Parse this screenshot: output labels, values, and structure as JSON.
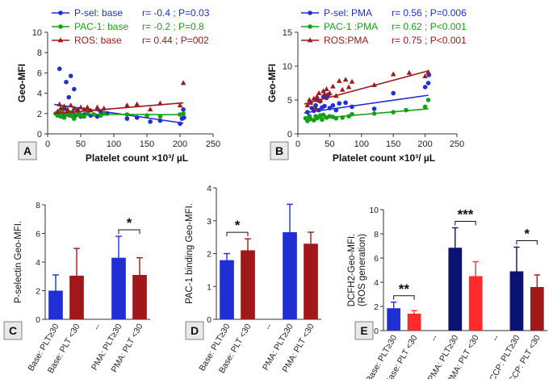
{
  "colors": {
    "blue": "#1f2fd1",
    "green": "#16a016",
    "darkred": "#a01818",
    "navy": "#0a1273",
    "red": "#ff2a2a",
    "axis": "#333333",
    "panel_bg": "#e9e9e9"
  },
  "chart_data": [
    {
      "id": "A",
      "type": "scatter",
      "panel_label": "A",
      "xlabel": "Platelet count  ×10³/ µL",
      "ylabel": "Geo-MFI",
      "xlim": [
        0,
        250
      ],
      "ylim": [
        0,
        10
      ],
      "xticks": [
        "0",
        "50",
        "100",
        "150",
        "200",
        "250"
      ],
      "yticks": [
        "0",
        "2",
        "4",
        "6",
        "8",
        "10"
      ],
      "series": [
        {
          "name": "P-sel: base",
          "stat": "r= -0.4 ; P=0.03",
          "color": "#1f2fd1",
          "marker": "circle",
          "points": [
            [
              15,
              1.9
            ],
            [
              18,
              6.4
            ],
            [
              20,
              2.4
            ],
            [
              22,
              1.9
            ],
            [
              25,
              2.5
            ],
            [
              28,
              5.1
            ],
            [
              30,
              2.2
            ],
            [
              32,
              3.6
            ],
            [
              35,
              5.7
            ],
            [
              38,
              2.1
            ],
            [
              40,
              4.4
            ],
            [
              42,
              1.8
            ],
            [
              45,
              2.3
            ],
            [
              48,
              2.0
            ],
            [
              50,
              1.7
            ],
            [
              55,
              1.9
            ],
            [
              60,
              2.0
            ],
            [
              65,
              1.8
            ],
            [
              75,
              1.7
            ],
            [
              80,
              2.2
            ],
            [
              90,
              2.0
            ],
            [
              120,
              1.5
            ],
            [
              135,
              1.6
            ],
            [
              155,
              1.2
            ],
            [
              170,
              1.3
            ],
            [
              200,
              1.0
            ],
            [
              203,
              1.5
            ],
            [
              205,
              2.4
            ],
            [
              206,
              1.6
            ]
          ],
          "fit": [
            [
              10,
              2.9
            ],
            [
              205,
              1.05
            ]
          ]
        },
        {
          "name": "PAC-1: base",
          "stat": "r= -0.2 ; P=0.8",
          "color": "#16a016",
          "marker": "circle",
          "points": [
            [
              12,
              2.0
            ],
            [
              15,
              1.8
            ],
            [
              18,
              2.1
            ],
            [
              20,
              1.7
            ],
            [
              22,
              2.2
            ],
            [
              25,
              1.6
            ],
            [
              28,
              1.9
            ],
            [
              30,
              2.0
            ],
            [
              33,
              1.8
            ],
            [
              35,
              2.1
            ],
            [
              38,
              1.7
            ],
            [
              40,
              1.5
            ],
            [
              45,
              1.9
            ],
            [
              48,
              2.0
            ],
            [
              50,
              1.8
            ],
            [
              55,
              1.7
            ],
            [
              60,
              2.2
            ],
            [
              70,
              1.9
            ],
            [
              80,
              1.8
            ],
            [
              85,
              2.0
            ],
            [
              120,
              1.9
            ],
            [
              150,
              1.8
            ],
            [
              170,
              1.7
            ],
            [
              200,
              1.9
            ],
            [
              205,
              2.0
            ]
          ],
          "fit": [
            [
              10,
              1.95
            ],
            [
              205,
              1.88
            ]
          ]
        },
        {
          "name": "ROS: base",
          "stat": "r= 0.44 ; P=002",
          "color": "#a01818",
          "marker": "triangle",
          "points": [
            [
              15,
              2.2
            ],
            [
              18,
              2.9
            ],
            [
              20,
              2.5
            ],
            [
              25,
              2.7
            ],
            [
              30,
              2.4
            ],
            [
              35,
              2.8
            ],
            [
              40,
              2.5
            ],
            [
              45,
              2.3
            ],
            [
              50,
              2.6
            ],
            [
              55,
              2.4
            ],
            [
              60,
              2.6
            ],
            [
              65,
              2.3
            ],
            [
              75,
              2.6
            ],
            [
              85,
              2.5
            ],
            [
              120,
              2.8
            ],
            [
              135,
              2.9
            ],
            [
              155,
              2.4
            ],
            [
              170,
              3.0
            ],
            [
              200,
              2.8
            ],
            [
              205,
              5.0
            ]
          ],
          "fit": [
            [
              10,
              2.0
            ],
            [
              205,
              3.05
            ]
          ]
        }
      ]
    },
    {
      "id": "B",
      "type": "scatter",
      "panel_label": "B",
      "xlabel": "Platelet count  ×10³/ µL",
      "ylabel": "Geo-MFI",
      "xlim": [
        0,
        250
      ],
      "ylim": [
        0,
        15
      ],
      "xticks": [
        "0",
        "50",
        "100",
        "150",
        "200",
        "250"
      ],
      "yticks": [
        "0",
        "5",
        "10",
        "15"
      ],
      "series": [
        {
          "name": "P-sel: PMA",
          "stat": "r= 0.56 ; P=0.006",
          "color": "#1f2fd1",
          "marker": "circle",
          "points": [
            [
              15,
              3.2
            ],
            [
              18,
              2.6
            ],
            [
              20,
              4.6
            ],
            [
              22,
              3.8
            ],
            [
              25,
              3.4
            ],
            [
              28,
              4.2
            ],
            [
              30,
              5.0
            ],
            [
              33,
              3.5
            ],
            [
              35,
              4.8
            ],
            [
              38,
              3.9
            ],
            [
              40,
              5.5
            ],
            [
              42,
              4.1
            ],
            [
              45,
              5.3
            ],
            [
              48,
              5.8
            ],
            [
              50,
              3.8
            ],
            [
              55,
              4.2
            ],
            [
              60,
              3.5
            ],
            [
              65,
              4.5
            ],
            [
              75,
              4.6
            ],
            [
              85,
              4.0
            ],
            [
              120,
              3.7
            ],
            [
              150,
              6.0
            ],
            [
              200,
              6.9
            ],
            [
              205,
              7.5
            ],
            [
              206,
              8.7
            ]
          ],
          "fit": [
            [
              10,
              3.1
            ],
            [
              205,
              5.7
            ]
          ]
        },
        {
          "name": "PAC-1 :PMA",
          "stat": "r= 0.62 ; P<0.001",
          "color": "#16a016",
          "marker": "circle",
          "points": [
            [
              12,
              2.3
            ],
            [
              15,
              1.9
            ],
            [
              18,
              2.5
            ],
            [
              20,
              2.2
            ],
            [
              25,
              2.0
            ],
            [
              28,
              2.6
            ],
            [
              30,
              2.3
            ],
            [
              35,
              2.7
            ],
            [
              38,
              2.1
            ],
            [
              40,
              2.8
            ],
            [
              45,
              2.4
            ],
            [
              50,
              2.6
            ],
            [
              55,
              2.5
            ],
            [
              60,
              2.3
            ],
            [
              70,
              2.4
            ],
            [
              80,
              2.6
            ],
            [
              85,
              2.9
            ],
            [
              120,
              3.0
            ],
            [
              150,
              3.2
            ],
            [
              170,
              3.5
            ],
            [
              200,
              4.0
            ],
            [
              205,
              5.0
            ]
          ],
          "fit": [
            [
              10,
              2.1
            ],
            [
              205,
              3.7
            ]
          ]
        },
        {
          "name": "ROS:PMA",
          "stat": "r= 0.75 ; P<0.001",
          "color": "#a01818",
          "marker": "triangle",
          "points": [
            [
              15,
              4.2
            ],
            [
              18,
              5.0
            ],
            [
              20,
              4.6
            ],
            [
              25,
              5.2
            ],
            [
              28,
              3.8
            ],
            [
              30,
              5.5
            ],
            [
              33,
              6.0
            ],
            [
              35,
              4.9
            ],
            [
              40,
              6.3
            ],
            [
              42,
              5.8
            ],
            [
              45,
              6.6
            ],
            [
              50,
              6.0
            ],
            [
              55,
              7.0
            ],
            [
              60,
              5.6
            ],
            [
              65,
              7.8
            ],
            [
              70,
              6.5
            ],
            [
              75,
              8.0
            ],
            [
              80,
              6.9
            ],
            [
              85,
              7.7
            ],
            [
              120,
              7.2
            ],
            [
              150,
              8.8
            ],
            [
              175,
              9.0
            ],
            [
              200,
              8.5
            ],
            [
              205,
              9.1
            ]
          ],
          "fit": [
            [
              10,
              4.4
            ],
            [
              205,
              9.3
            ]
          ]
        }
      ]
    },
    {
      "id": "C",
      "type": "bar",
      "panel_label": "C",
      "ylabel": "P-selectin Geo-MFI.",
      "ylim": [
        0,
        8
      ],
      "yticks": [
        "0",
        "2",
        "4",
        "6",
        "8"
      ],
      "categories": [
        "Base: PLT≥30",
        "Base: PLT <30",
        "--",
        "PMA: PLT≥30",
        "PMA: PLT <30"
      ],
      "values": [
        2.0,
        3.05,
        null,
        4.3,
        3.1
      ],
      "errors": [
        1.1,
        1.9,
        null,
        1.5,
        1.2
      ],
      "bar_colors": [
        "#1f2fd1",
        "#a01818",
        null,
        "#1f2fd1",
        "#a01818"
      ],
      "significance": [
        {
          "from": 3,
          "to": 4,
          "label": "*"
        }
      ]
    },
    {
      "id": "D",
      "type": "bar",
      "panel_label": "D",
      "ylabel": "PAC-1 binding Geo-MFI.",
      "ylim": [
        0,
        4
      ],
      "yticks": [
        "0",
        "1",
        "2",
        "3",
        "4"
      ],
      "categories": [
        "Base: PLT≥30",
        "Base: PLT <30",
        "--",
        "PMA: PLT≥30",
        "PMA: PLT <30"
      ],
      "values": [
        1.8,
        2.1,
        null,
        2.65,
        2.3
      ],
      "errors": [
        0.2,
        0.35,
        null,
        0.85,
        0.35
      ],
      "bar_colors": [
        "#1f2fd1",
        "#a01818",
        null,
        "#1f2fd1",
        "#a01818"
      ],
      "significance": [
        {
          "from": 0,
          "to": 1,
          "label": "*"
        }
      ]
    },
    {
      "id": "E",
      "type": "bar",
      "panel_label": "E",
      "ylabel": "DCFH2-Geo-MFI. (ROS generation)",
      "ylabel_lines": [
        "DCFH2-Geo-MFI.",
        "(ROS generation)"
      ],
      "ylim": [
        0,
        10
      ],
      "yticks": [
        "0",
        "2",
        "4",
        "6",
        "8",
        "10"
      ],
      "categories": [
        "Base: PLT≥30",
        "Base: PLT <30",
        "--",
        "PMA: PLT≥30",
        "PMA: PLT <30",
        "--",
        "CCCP: PLT≥30",
        "CCCP: PLT <30"
      ],
      "values": [
        1.85,
        1.4,
        null,
        6.85,
        4.5,
        null,
        4.9,
        3.6
      ],
      "errors": [
        0.5,
        0.25,
        null,
        1.65,
        1.2,
        null,
        2.0,
        1.0
      ],
      "bar_colors": [
        "#1f2fd1",
        "#ff2a2a",
        null,
        "#0a1273",
        "#ff2a2a",
        null,
        "#0a1273",
        "#a01818"
      ],
      "significance": [
        {
          "from": 0,
          "to": 1,
          "label": "**"
        },
        {
          "from": 3,
          "to": 4,
          "label": "***"
        },
        {
          "from": 6,
          "to": 7,
          "label": "*"
        }
      ]
    }
  ]
}
